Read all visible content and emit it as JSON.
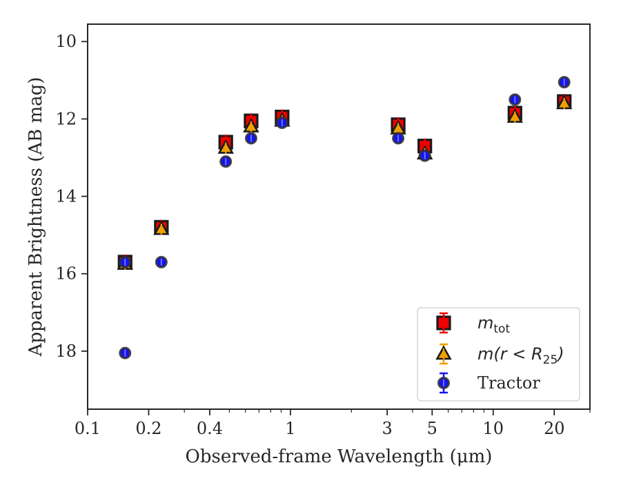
{
  "chart_data": {
    "type": "scatter",
    "title": "",
    "xlabel": "Observed-frame Wavelength (μm)",
    "ylabel": "Apparent Brightness (AB mag)",
    "xscale": "log",
    "xlim": [
      0.1,
      30
    ],
    "ylim": [
      19.5,
      9.55
    ],
    "y_inverted": true,
    "xticks": [
      0.1,
      0.2,
      0.4,
      1,
      3,
      5,
      10,
      20
    ],
    "xtick_labels": [
      "0.1",
      "0.2",
      "0.4",
      "1",
      "3",
      "5",
      "10",
      "20"
    ],
    "yticks": [
      10,
      12,
      14,
      16,
      18
    ],
    "ytick_labels": [
      "10",
      "12",
      "14",
      "16",
      "18"
    ],
    "grid": false,
    "legend_position": "bottom-right",
    "series": [
      {
        "name": "m_tot",
        "label_base": "m",
        "label_sub": "tot",
        "marker": "square",
        "color": "#ee0000",
        "edge_color": "#1a1a1a",
        "x": [
          0.153,
          0.231,
          0.48,
          0.64,
          0.91,
          3.4,
          4.6,
          12.8,
          22.4
        ],
        "y": [
          15.7,
          14.8,
          12.6,
          12.05,
          11.95,
          12.15,
          12.7,
          11.85,
          11.55
        ]
      },
      {
        "name": "m(r < R25)",
        "label_base": "m(r < R",
        "label_sub": "25",
        "label_end": ")",
        "marker": "triangle",
        "color": "#f0a000",
        "edge_color": "#1a1a1a",
        "x": [
          0.153,
          0.231,
          0.48,
          0.64,
          0.91,
          3.4,
          4.6,
          12.8,
          22.4
        ],
        "y": [
          15.75,
          14.85,
          12.75,
          12.2,
          12.05,
          12.25,
          12.9,
          11.95,
          11.6
        ]
      },
      {
        "name": "Tractor",
        "marker": "circle",
        "color": "#1515ee",
        "edge_color": "#333333",
        "x": [
          0.153,
          0.153,
          0.231,
          0.48,
          0.64,
          0.91,
          3.4,
          4.6,
          12.8,
          22.4
        ],
        "y": [
          18.05,
          15.7,
          15.7,
          13.1,
          12.5,
          12.1,
          12.5,
          12.95,
          11.5,
          11.05
        ]
      }
    ]
  }
}
